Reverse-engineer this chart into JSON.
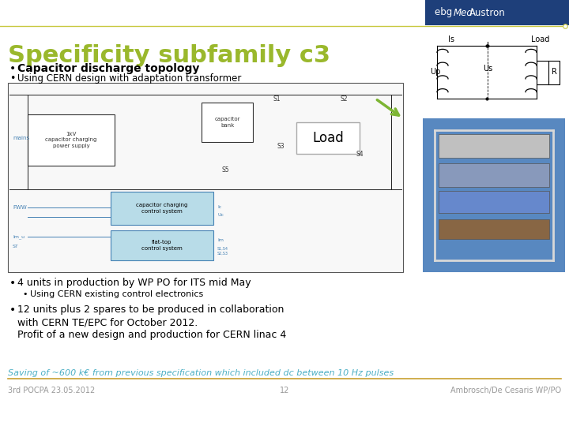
{
  "title": "Specificity subfamily c3",
  "title_color": "#9ab82c",
  "title_fontsize": 22,
  "background_color": "#ffffff",
  "logo_bg_color": "#1e3f7a",
  "bullet1_bold": "Capacitor discharge topology",
  "bullet2": "Using CERN design with adaptation transformer",
  "bullet3": "4 units in production by WP PO for ITS mid May",
  "bullet3_sub": "Using CERN existing control electronics",
  "bullet4_line1": "12 units plus 2 spares to be produced in collaboration",
  "bullet4_line2": "with CERN TE/EPC for October 2012.",
  "bullet4_line3": "Profit of a new design and production for CERN linac 4",
  "saving_text": "Saving of ~600 k€ from previous specification which included dc between 10 Hz pulses",
  "saving_color": "#4bafc4",
  "footer_left": "3rd POCPA 23.05.2012",
  "footer_center": "12",
  "footer_right": "Ambrosch/De Cesaris WP/PO",
  "footer_color": "#999999",
  "separator_color": "#c8a030",
  "header_line_color": "#c8a030",
  "logo_line_color": "#c8c840"
}
